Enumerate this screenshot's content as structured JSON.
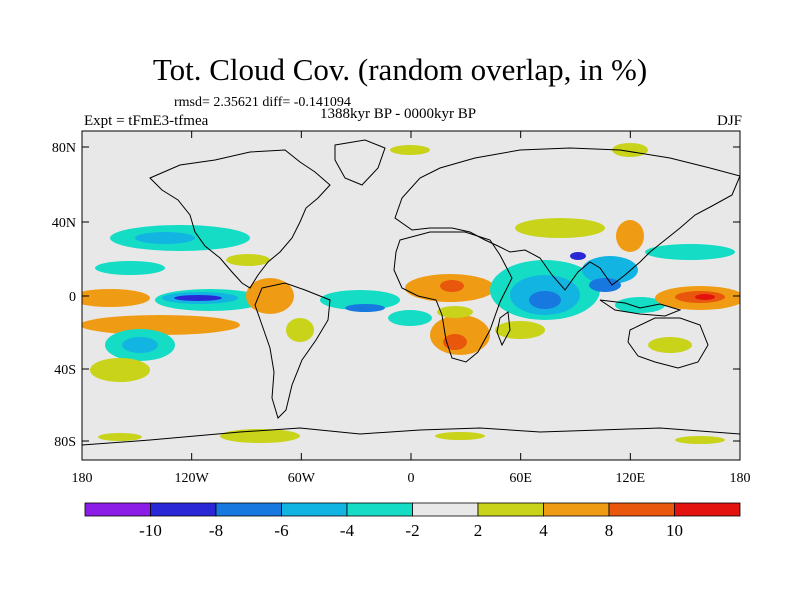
{
  "title": "Tot. Cloud Cov. (random overlap, in %)",
  "stats": "rmsd= 2.35621 diff= -0.141094",
  "experiment": "Expt = tFmE3-tfmea",
  "period": "1388kyr BP - 0000kyr BP",
  "season": "DJF",
  "lat_ticks": [
    "80N",
    "40N",
    "0",
    "40S",
    "80S"
  ],
  "lon_ticks": [
    "180",
    "120W",
    "60W",
    "0",
    "60E",
    "120E",
    "180"
  ],
  "colorbar": {
    "labels": [
      "-10",
      "-8",
      "-6",
      "-4",
      "-2",
      "2",
      "4",
      "8",
      "10"
    ],
    "colors": [
      "#8c1de6",
      "#2a27d6",
      "#1778e0",
      "#12b4e2",
      "#14dcc5",
      "#e8e8e8",
      "#c8d31a",
      "#ef9c14",
      "#e8570c",
      "#e3120f"
    ]
  },
  "map_background": "#e8e8e8"
}
